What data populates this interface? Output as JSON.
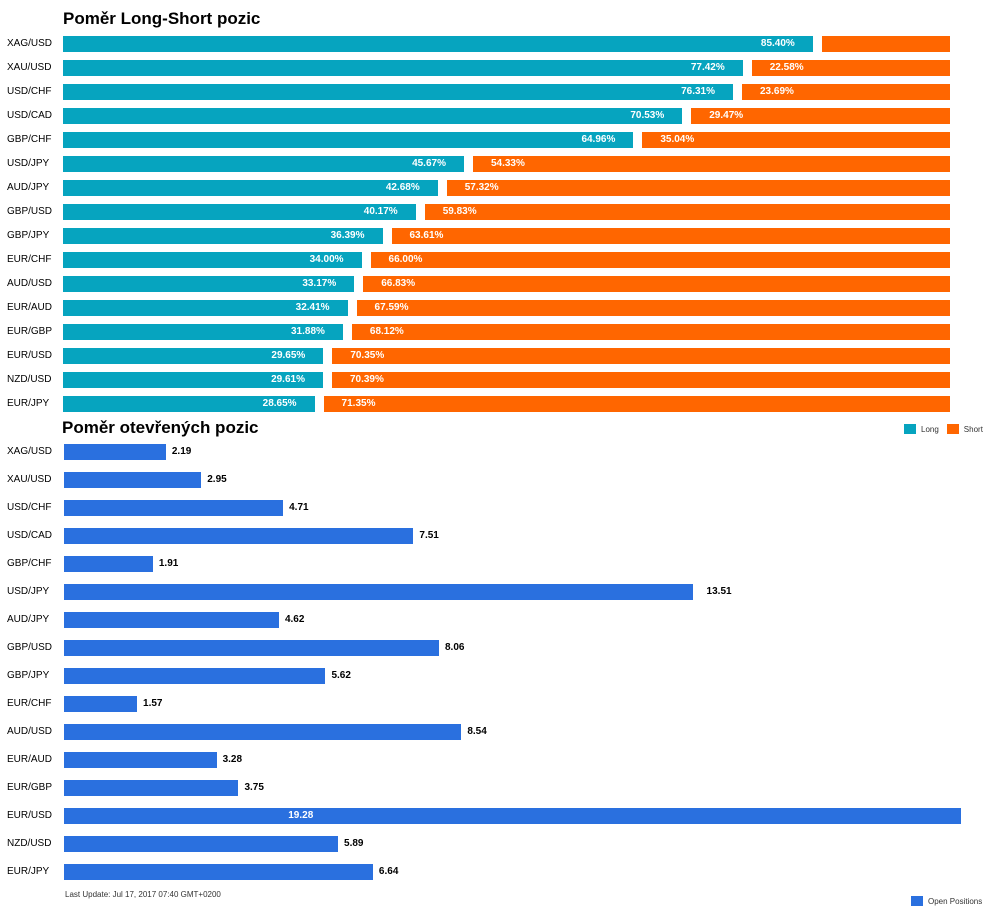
{
  "colors": {
    "long": "#06a4bf",
    "short": "#ff6600",
    "open": "#2a70df"
  },
  "chart_data": [
    {
      "type": "bar",
      "orientation": "horizontal",
      "stacked": true,
      "title": "Poměr Long-Short pozic",
      "categories": [
        "XAG/USD",
        "XAU/USD",
        "USD/CHF",
        "USD/CAD",
        "GBP/CHF",
        "USD/JPY",
        "AUD/JPY",
        "GBP/USD",
        "GBP/JPY",
        "EUR/CHF",
        "AUD/USD",
        "EUR/AUD",
        "EUR/GBP",
        "EUR/USD",
        "NZD/USD",
        "EUR/JPY"
      ],
      "series": [
        {
          "name": "Long",
          "values": [
            85.4,
            77.42,
            76.31,
            70.53,
            64.96,
            45.67,
            42.68,
            40.17,
            36.39,
            34.0,
            33.17,
            32.41,
            31.88,
            29.65,
            29.61,
            28.65
          ]
        },
        {
          "name": "Short",
          "values": [
            14.6,
            22.58,
            23.69,
            29.47,
            35.04,
            54.33,
            57.32,
            59.83,
            63.61,
            66.0,
            66.83,
            67.59,
            68.12,
            70.35,
            70.39,
            71.35
          ]
        }
      ],
      "long_labels": [
        "85.40%",
        "77.42%",
        "76.31%",
        "70.53%",
        "64.96%",
        "45.67%",
        "42.68%",
        "40.17%",
        "36.39%",
        "34.00%",
        "33.17%",
        "32.41%",
        "31.88%",
        "29.65%",
        "29.61%",
        "28.65%"
      ],
      "short_labels": [
        "",
        "22.58%",
        "23.69%",
        "29.47%",
        "35.04%",
        "54.33%",
        "57.32%",
        "59.83%",
        "63.61%",
        "66.00%",
        "66.83%",
        "67.59%",
        "68.12%",
        "70.35%",
        "70.39%",
        "71.35%"
      ],
      "xlim": [
        0,
        100
      ],
      "legend": {
        "position": "bottom-right",
        "entries": [
          "Long",
          "Short"
        ]
      }
    },
    {
      "type": "bar",
      "orientation": "horizontal",
      "title": "Poměr otevřených pozic",
      "categories": [
        "XAG/USD",
        "XAU/USD",
        "USD/CHF",
        "USD/CAD",
        "GBP/CHF",
        "USD/JPY",
        "AUD/JPY",
        "GBP/USD",
        "GBP/JPY",
        "EUR/CHF",
        "AUD/USD",
        "EUR/AUD",
        "EUR/GBP",
        "EUR/USD",
        "NZD/USD",
        "EUR/JPY"
      ],
      "series": [
        {
          "name": "Open Positions",
          "values": [
            2.19,
            2.95,
            4.71,
            7.51,
            1.91,
            13.51,
            4.62,
            8.06,
            5.62,
            1.57,
            8.54,
            3.28,
            3.75,
            19.28,
            5.89,
            6.64
          ]
        }
      ],
      "value_labels": [
        "2.19",
        "2.95",
        "4.71",
        "7.51",
        "1.91",
        "13.51",
        "4.62",
        "8.06",
        "5.62",
        "1.57",
        "8.54",
        "3.28",
        "3.75",
        "19.28",
        "5.89",
        "6.64"
      ],
      "xlim": [
        0,
        19.28
      ],
      "legend": {
        "position": "bottom-right",
        "entries": [
          "Open Positions"
        ]
      },
      "footnote": "Last Update: Jul 17, 2017 07:40 GMT+0200"
    }
  ]
}
